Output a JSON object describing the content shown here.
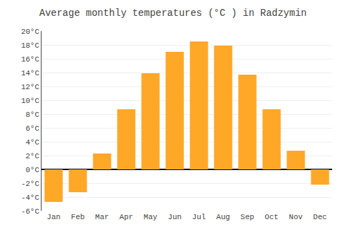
{
  "chart_data": {
    "type": "bar",
    "title": "Average monthly temperatures (°C ) in Radzymin",
    "categories": [
      "Jan",
      "Feb",
      "Mar",
      "Apr",
      "May",
      "Jun",
      "Jul",
      "Aug",
      "Sep",
      "Oct",
      "Nov",
      "Dec"
    ],
    "values": [
      -4.7,
      -3.3,
      2.3,
      8.7,
      13.9,
      17.0,
      18.5,
      17.9,
      13.7,
      8.7,
      2.7,
      -2.2
    ],
    "color": "#FFA726",
    "ylim": [
      -6,
      20
    ],
    "yticks": [
      {
        "value": -6,
        "label": "-6°C"
      },
      {
        "value": -4,
        "label": "-4°C"
      },
      {
        "value": -2,
        "label": "-2°C"
      },
      {
        "value": 0,
        "label": "0°C"
      },
      {
        "value": 2,
        "label": "2°C"
      },
      {
        "value": 4,
        "label": "4°C"
      },
      {
        "value": 6,
        "label": "6°C"
      },
      {
        "value": 8,
        "label": "8°C"
      },
      {
        "value": 10,
        "label": "10°C"
      },
      {
        "value": 12,
        "label": "12°C"
      },
      {
        "value": 14,
        "label": "14°C"
      },
      {
        "value": 16,
        "label": "16°C"
      },
      {
        "value": 18,
        "label": "18°C"
      },
      {
        "value": 20,
        "label": "20°C"
      }
    ],
    "grid": true
  }
}
